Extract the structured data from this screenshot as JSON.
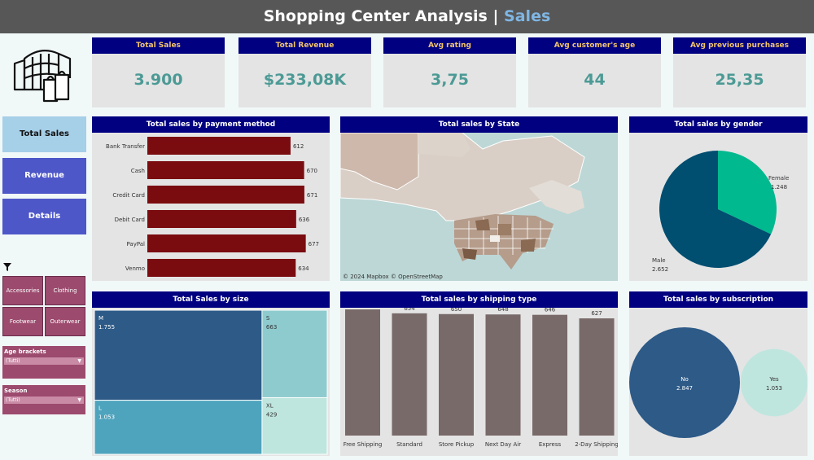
{
  "header": {
    "title": "Shopping Center Analysis",
    "separator": "|",
    "subtitle": "Sales"
  },
  "kpis": [
    {
      "label": "Total Sales",
      "value": "3.900"
    },
    {
      "label": "Total Revenue",
      "value": "$233,08K"
    },
    {
      "label": "Avg rating",
      "value": "3,75"
    },
    {
      "label": "Avg customer's age",
      "value": "44"
    },
    {
      "label": "Avg previous purchases",
      "value": "25,35"
    }
  ],
  "nav": {
    "total_sales": "Total Sales",
    "revenue": "Revenue",
    "details": "Details"
  },
  "categories": {
    "accessories": "Accessories",
    "clothing": "Clothing",
    "footwear": "Footwear",
    "outerwear": "Outerwear"
  },
  "filters": {
    "age": {
      "label": "Age brackets",
      "value": "(Tutti)"
    },
    "season": {
      "label": "Season",
      "value": "(Tutti)"
    }
  },
  "panels": {
    "payment": "Total sales by payment method",
    "state": "Total sales by State",
    "gender": "Total sales by gender",
    "size": "Total Sales by size",
    "shipping": "Total sales by shipping type",
    "subscription": "Total sales by subscription"
  },
  "map": {
    "attribution": "© 2024 Mapbox  © OpenStreetMap"
  },
  "colors": {
    "title_bg": "#575757",
    "header_bg": "#000080",
    "kpi_label": "#f2c46c",
    "kpi_value": "#4c9a95",
    "payment_bar": "#7a0c10",
    "shipping_bar": "#786a69",
    "nav_active": "#a6cfe8",
    "nav_inactive": "#4e57c8",
    "filter": "#9c4a6e"
  },
  "chart_data": [
    {
      "type": "bar",
      "orientation": "horizontal",
      "categories": [
        "Bank Transfer",
        "Cash",
        "Credit Card",
        "Debit Card",
        "PayPal",
        "Venmo"
      ],
      "values": [
        612,
        670,
        671,
        636,
        677,
        634
      ]
    },
    {
      "type": "pie",
      "categories": [
        "Female",
        "Male"
      ],
      "values": [
        1248,
        2652
      ],
      "labels": [
        "1.248",
        "2.652"
      ],
      "colors": [
        "#00b98e",
        "#004e70"
      ]
    },
    {
      "type": "treemap",
      "categories": [
        "M",
        "S",
        "L",
        "XL"
      ],
      "values": [
        1755,
        663,
        1053,
        429
      ],
      "labels": [
        "1.755",
        "663",
        "1.053",
        "429"
      ],
      "colors": [
        "#2d5a87",
        "#8ecbce",
        "#4ea3bd",
        "#bfe6de"
      ]
    },
    {
      "type": "bar",
      "categories": [
        "Free Shipping",
        "Standard",
        "Store Pickup",
        "Next Day Air",
        "Express",
        "2-Day Shipping"
      ],
      "values": [
        675,
        654,
        650,
        648,
        646,
        627
      ]
    },
    {
      "type": "bubble",
      "categories": [
        "No",
        "Yes"
      ],
      "values": [
        2847,
        1053
      ],
      "labels": [
        "2.847",
        "1.053"
      ],
      "colors": [
        "#2d5a87",
        "#bfe6de"
      ]
    }
  ]
}
